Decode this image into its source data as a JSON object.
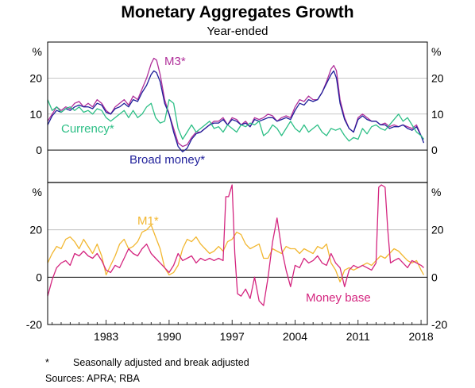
{
  "title": "Monetary Aggregates Growth",
  "subtitle": "Year-ended",
  "footnote_marker": "*",
  "footnote_text": "Seasonally adjusted and break adjusted",
  "sources": "Sources:   APRA; RBA",
  "colors": {
    "m3": "#b0309a",
    "broad": "#1f1f9a",
    "currency": "#2dbf86",
    "m1": "#f2b731",
    "base": "#d4257f",
    "grid": "#b3b3b3"
  },
  "chart_data": [
    {
      "type": "line",
      "panel": "top",
      "ylabel_left": "%",
      "ylabel_right": "%",
      "ylim": [
        -9,
        30
      ],
      "yticks": [
        0,
        10,
        20
      ],
      "xlim": [
        1976.5,
        2018.7
      ],
      "series": [
        {
          "name": "M3*",
          "color": "#b0309a",
          "x": [
            1976.5,
            1977,
            1977.5,
            1978,
            1978.5,
            1979,
            1979.5,
            1980,
            1980.5,
            1981,
            1981.5,
            1982,
            1982.5,
            1983,
            1983.5,
            1984,
            1984.5,
            1985,
            1985.5,
            1986,
            1986.5,
            1987,
            1987.5,
            1988,
            1988.3,
            1988.6,
            1989,
            1989.5,
            1990,
            1990.5,
            1991,
            1991.5,
            1992,
            1992.5,
            1993,
            1993.5,
            1994,
            1994.5,
            1995,
            1995.5,
            1996,
            1996.5,
            1997,
            1997.5,
            1998,
            1998.5,
            1999,
            1999.5,
            2000,
            2000.5,
            2001,
            2001.5,
            2002,
            2002.5,
            2003,
            2003.5,
            2004,
            2004.5,
            2005,
            2005.5,
            2006,
            2006.5,
            2007,
            2007.5,
            2008,
            2008.3,
            2008.6,
            2009,
            2009.5,
            2010,
            2010.5,
            2011,
            2011.5,
            2012,
            2012.5,
            2013,
            2013.5,
            2014,
            2014.5,
            2015,
            2015.5,
            2016,
            2016.5,
            2017,
            2017.5,
            2018,
            2018.3
          ],
          "values": [
            8,
            10,
            12,
            11,
            12,
            11.5,
            13,
            13.5,
            12,
            13,
            12,
            14,
            13,
            11,
            10,
            12,
            13,
            14,
            12.5,
            15,
            14,
            17,
            20,
            24,
            25.5,
            25,
            21,
            14,
            10,
            6,
            2,
            1,
            1.5,
            3.5,
            5,
            5,
            6,
            7,
            8,
            8,
            9,
            7,
            9,
            8.5,
            7,
            8,
            6.5,
            9,
            8.5,
            9,
            10,
            9.5,
            8,
            9,
            9.5,
            9,
            12,
            14,
            13.5,
            15,
            14,
            14,
            16,
            19,
            22.5,
            23.5,
            22,
            14,
            9,
            6,
            5,
            9,
            10,
            9,
            8,
            8,
            7,
            7.5,
            6.5,
            7,
            6.5,
            7,
            6.5,
            6,
            7,
            4,
            3
          ]
        },
        {
          "name": "Broad money*",
          "color": "#1f1f9a",
          "x": [
            1976.5,
            1977,
            1977.5,
            1978,
            1978.5,
            1979,
            1979.5,
            1980,
            1980.5,
            1981,
            1981.5,
            1982,
            1982.5,
            1983,
            1983.5,
            1984,
            1984.5,
            1985,
            1985.5,
            1986,
            1986.5,
            1987,
            1987.5,
            1988,
            1988.3,
            1988.6,
            1989,
            1989.5,
            1990,
            1990.5,
            1991,
            1991.5,
            1992,
            1992.5,
            1993,
            1993.5,
            1994,
            1994.5,
            1995,
            1995.5,
            1996,
            1996.5,
            1997,
            1997.5,
            1998,
            1998.5,
            1999,
            1999.5,
            2000,
            2000.5,
            2001,
            2001.5,
            2002,
            2002.5,
            2003,
            2003.5,
            2004,
            2004.5,
            2005,
            2005.5,
            2006,
            2006.5,
            2007,
            2007.5,
            2008,
            2008.3,
            2008.6,
            2009,
            2009.5,
            2010,
            2010.5,
            2011,
            2011.5,
            2012,
            2012.5,
            2013,
            2013.5,
            2014,
            2014.5,
            2015,
            2015.5,
            2016,
            2016.5,
            2017,
            2017.5,
            2018,
            2018.3
          ],
          "values": [
            7,
            9.5,
            11,
            10.5,
            11.5,
            11,
            12,
            12.5,
            12,
            12,
            11.5,
            13,
            12.5,
            10.5,
            10,
            11.5,
            12,
            13,
            12,
            14,
            13.5,
            16,
            18,
            21,
            22,
            21.5,
            19,
            13,
            10,
            5,
            1,
            -0.5,
            0.5,
            3,
            4.5,
            5,
            6,
            7,
            7.5,
            7.5,
            8.5,
            7,
            8.5,
            8,
            7,
            7.5,
            6.5,
            8.5,
            8,
            8.5,
            9,
            9,
            8,
            8.5,
            9,
            8.5,
            11,
            13,
            12.5,
            14,
            13.5,
            14,
            16,
            18.5,
            21,
            22,
            20,
            13,
            8.5,
            6,
            5,
            8.5,
            9.5,
            8.5,
            8,
            8,
            7,
            7,
            6,
            6.5,
            6.5,
            7,
            6,
            5.5,
            6.5,
            4,
            2
          ]
        },
        {
          "name": "Currency*",
          "color": "#2dbf86",
          "x": [
            1976.5,
            1977,
            1977.5,
            1978,
            1978.5,
            1979,
            1979.5,
            1980,
            1980.5,
            1981,
            1981.5,
            1982,
            1982.5,
            1983,
            1983.5,
            1984,
            1984.5,
            1985,
            1985.5,
            1986,
            1986.5,
            1987,
            1987.5,
            1988,
            1988.5,
            1989,
            1989.5,
            1990,
            1990.5,
            1991,
            1991.5,
            1992,
            1992.5,
            1993,
            1993.5,
            1994,
            1994.5,
            1995,
            1995.5,
            1996,
            1996.5,
            1997,
            1997.5,
            1998,
            1998.5,
            1999,
            1999.5,
            2000,
            2000.5,
            2001,
            2001.5,
            2002,
            2002.5,
            2003,
            2003.5,
            2004,
            2004.5,
            2005,
            2005.5,
            2006,
            2006.5,
            2007,
            2007.5,
            2008,
            2008.5,
            2009,
            2009.5,
            2010,
            2010.5,
            2011,
            2011.5,
            2012,
            2012.5,
            2013,
            2013.5,
            2014,
            2014.5,
            2015,
            2015.5,
            2016,
            2016.5,
            2017,
            2017.5,
            2018,
            2018.3
          ],
          "values": [
            14,
            11,
            12,
            10.5,
            11.5,
            12,
            11,
            12,
            10.5,
            11,
            10,
            11.5,
            11,
            9,
            8,
            9,
            10,
            11,
            9,
            11,
            9,
            10,
            12,
            13,
            9,
            7.5,
            8,
            14,
            13,
            6,
            3,
            5,
            7,
            5,
            6,
            7,
            8,
            6,
            6.5,
            5,
            7,
            6,
            5,
            7,
            6.5,
            7.5,
            7,
            8,
            4,
            5,
            7,
            6,
            4,
            6,
            8,
            6,
            5,
            7,
            5,
            6,
            7,
            5,
            4,
            6,
            5.5,
            6,
            4,
            2.5,
            3.5,
            3,
            6,
            4.5,
            6.5,
            7,
            6,
            5.5,
            7,
            8.5,
            10,
            8,
            9,
            7,
            5,
            4,
            3
          ]
        }
      ]
    },
    {
      "type": "line",
      "panel": "bottom",
      "ylabel_left": "%",
      "ylabel_right": "%",
      "ylim": [
        -20,
        40
      ],
      "yticks": [
        -20,
        0,
        20
      ],
      "xlabel": "",
      "xticks": [
        1983,
        1990,
        1997,
        2004,
        2011,
        2018
      ],
      "xlim": [
        1976.5,
        2018.7
      ],
      "series": [
        {
          "name": "M1*",
          "color": "#f2b731",
          "x": [
            1976.5,
            1977,
            1977.5,
            1978,
            1978.5,
            1979,
            1979.5,
            1980,
            1980.5,
            1981,
            1981.5,
            1982,
            1982.5,
            1983,
            1983.5,
            1984,
            1984.5,
            1985,
            1985.5,
            1986,
            1986.5,
            1987,
            1987.5,
            1988,
            1988.5,
            1989,
            1989.5,
            1990,
            1990.5,
            1991,
            1991.5,
            1992,
            1992.5,
            1993,
            1993.5,
            1994,
            1994.5,
            1995,
            1995.5,
            1996,
            1996.5,
            1997,
            1997.5,
            1998,
            1998.5,
            1999,
            1999.5,
            2000,
            2000.5,
            2001,
            2001.5,
            2002,
            2002.5,
            2003,
            2003.5,
            2004,
            2004.5,
            2005,
            2005.5,
            2006,
            2006.5,
            2007,
            2007.5,
            2008,
            2008.5,
            2009,
            2009.5,
            2010,
            2010.5,
            2011,
            2011.5,
            2012,
            2012.5,
            2013,
            2013.5,
            2014,
            2014.5,
            2015,
            2015.5,
            2016,
            2016.5,
            2017,
            2017.5,
            2018,
            2018.3
          ],
          "values": [
            6,
            10,
            13,
            12,
            16,
            17,
            15,
            12,
            16,
            13,
            10,
            14,
            9,
            1,
            5,
            9,
            14,
            16,
            12,
            13,
            15,
            19,
            20,
            22,
            17,
            12,
            4,
            1,
            2,
            5,
            12,
            16,
            15,
            17,
            14,
            12,
            10,
            11,
            13,
            11,
            15,
            16,
            19,
            18,
            14,
            12,
            13,
            14,
            8,
            8,
            12,
            11,
            10,
            13,
            12,
            12,
            10,
            12,
            11,
            10,
            13,
            12,
            14,
            6,
            3,
            -2,
            3,
            4,
            3,
            4,
            5,
            6,
            5,
            7,
            9,
            8,
            10,
            12,
            11,
            9,
            7,
            6,
            7,
            3,
            1
          ]
        },
        {
          "name": "Money base",
          "color": "#d4257f",
          "x": [
            1976.5,
            1977,
            1977.5,
            1978,
            1978.5,
            1979,
            1979.5,
            1980,
            1980.5,
            1981,
            1981.5,
            1982,
            1982.5,
            1983,
            1983.5,
            1984,
            1984.5,
            1985,
            1985.5,
            1986,
            1986.5,
            1987,
            1987.5,
            1988,
            1988.5,
            1989,
            1989.5,
            1990,
            1990.5,
            1991,
            1991.5,
            1992,
            1992.5,
            1993,
            1993.5,
            1994,
            1994.5,
            1995,
            1995.5,
            1996,
            1996.3,
            1996.6,
            1997,
            1997.3,
            1997.6,
            1998,
            1998.5,
            1999,
            1999.5,
            2000,
            2000.5,
            2001,
            2001.5,
            2002,
            2002.5,
            2003,
            2003.5,
            2004,
            2004.5,
            2005,
            2005.5,
            2006,
            2006.5,
            2007,
            2007.5,
            2008,
            2008.5,
            2009,
            2009.5,
            2010,
            2010.5,
            2011,
            2011.5,
            2012,
            2012.5,
            2013,
            2013.3,
            2013.6,
            2014,
            2014.3,
            2014.6,
            2015,
            2015.5,
            2016,
            2016.5,
            2017,
            2017.5,
            2018,
            2018.3
          ],
          "values": [
            -8,
            -1,
            4,
            6,
            7,
            5,
            10,
            9,
            11,
            9,
            8,
            10,
            7,
            3,
            2,
            5,
            4,
            8,
            12,
            10,
            9,
            12,
            14,
            10,
            8,
            6,
            4,
            2,
            5,
            10,
            7,
            8,
            9,
            6,
            8,
            7,
            8,
            7,
            8,
            7,
            34,
            34,
            39,
            10,
            -7,
            -8,
            -5,
            -9,
            0,
            -10,
            -12,
            0,
            15,
            25,
            12,
            3,
            -4,
            5,
            4,
            8,
            6,
            7,
            9,
            6,
            5,
            10,
            6,
            4,
            -4,
            3,
            5,
            4,
            5,
            4,
            3,
            6,
            38,
            39,
            38,
            20,
            6,
            7,
            8,
            6,
            4,
            7,
            6,
            5,
            4
          ]
        }
      ]
    }
  ],
  "labels": {
    "m3": "M3*",
    "currency": "Currency*",
    "broad": "Broad money*",
    "m1": "M1*",
    "base": "Money base"
  }
}
